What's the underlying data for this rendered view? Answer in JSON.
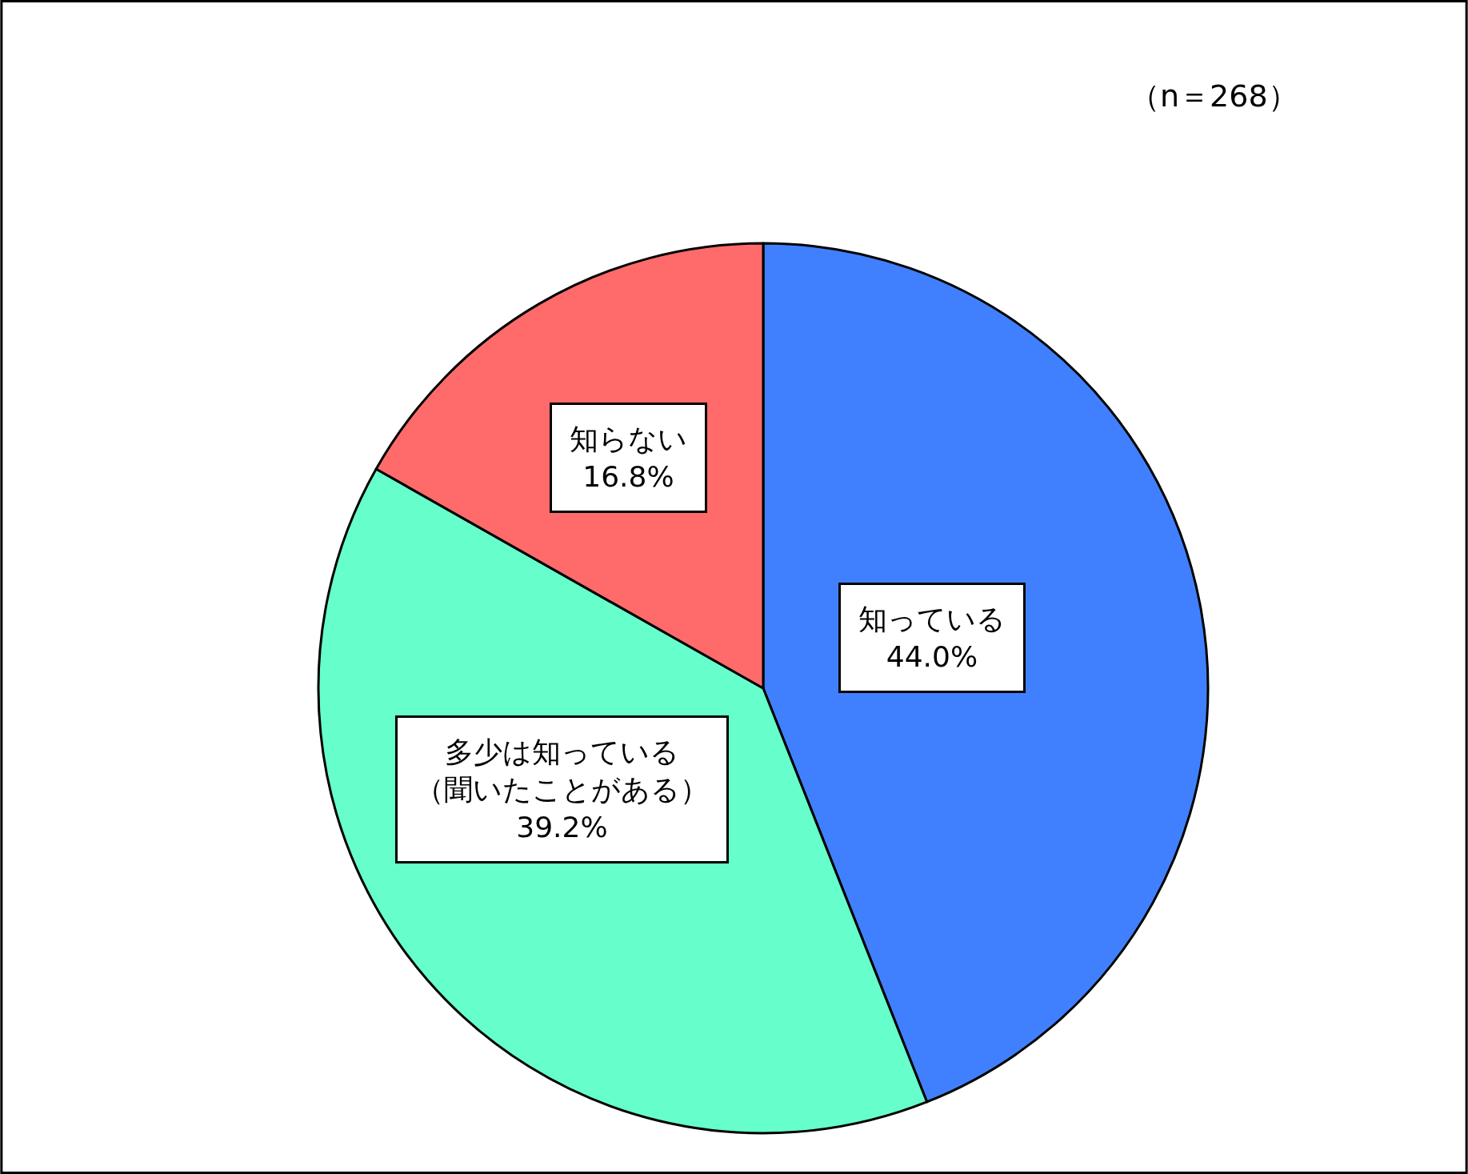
{
  "chart_data": {
    "type": "pie",
    "categories": [
      "知っている",
      "多少は知っている（聞いたことがある）",
      "知らない"
    ],
    "values": [
      44.0,
      39.2,
      16.8
    ],
    "colors": [
      "#4080ff",
      "#66ffcc",
      "#ff6b6b"
    ],
    "value_labels": [
      "44.0%",
      "39.2%",
      "16.8%"
    ],
    "annotations": [
      "（n＝268）"
    ],
    "legend": false
  }
}
